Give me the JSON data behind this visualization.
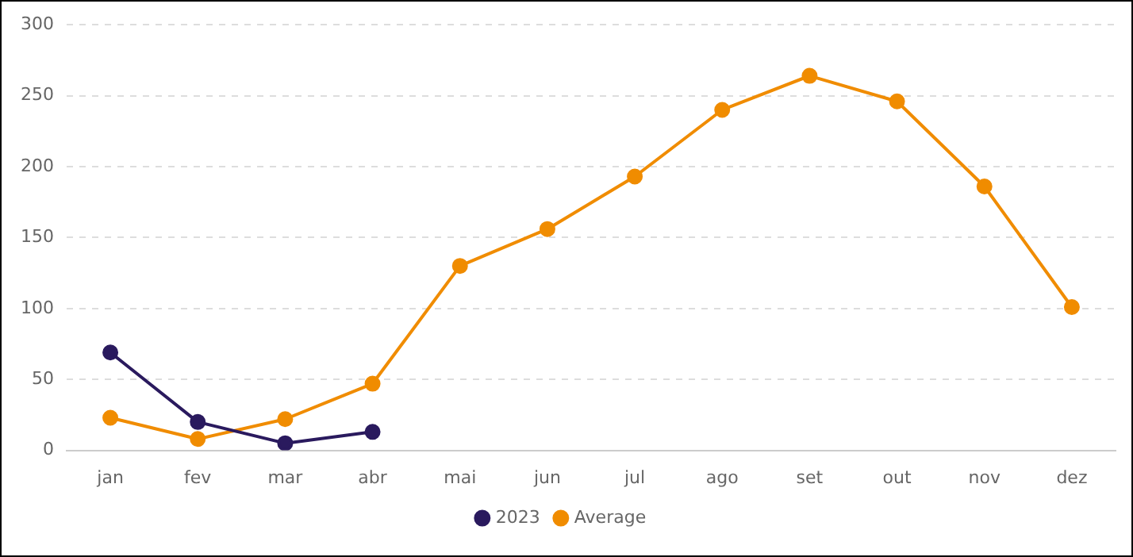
{
  "chart_data": {
    "type": "line",
    "categories": [
      "jan",
      "fev",
      "mar",
      "abr",
      "mai",
      "jun",
      "jul",
      "ago",
      "set",
      "out",
      "nov",
      "dez"
    ],
    "series": [
      {
        "name": "2023",
        "color": "#2a1a5e",
        "values": [
          69,
          20,
          5,
          13,
          null,
          null,
          null,
          null,
          null,
          null,
          null,
          null
        ]
      },
      {
        "name": "Average",
        "color": "#f08c00",
        "values": [
          23,
          8,
          22,
          47,
          130,
          156,
          193,
          240,
          264,
          246,
          186,
          101
        ]
      }
    ],
    "ylim": [
      0,
      300
    ],
    "yticks": [
      0,
      50,
      100,
      150,
      200,
      250,
      300
    ],
    "grid": "y",
    "legend": "bottom",
    "marker": "circle",
    "line_style": "solid"
  }
}
